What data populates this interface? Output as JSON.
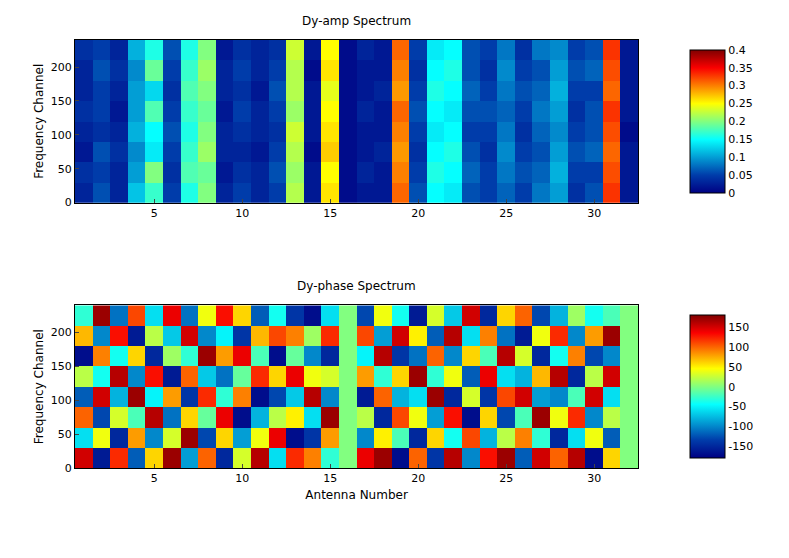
{
  "chart_data": [
    {
      "type": "heatmap",
      "title": "Dy-amp Spectrum",
      "ylabel": "Frequency Channel",
      "x": [
        1,
        2,
        3,
        4,
        5,
        6,
        7,
        8,
        9,
        10,
        11,
        12,
        13,
        14,
        15,
        16,
        17,
        18,
        19,
        20,
        21,
        22,
        23,
        24,
        25,
        26,
        27,
        28,
        29,
        30,
        31,
        32
      ],
      "y": [
        15,
        45,
        75,
        105,
        135,
        165,
        195,
        225
      ],
      "xlim": [
        0.5,
        32.5
      ],
      "ylim": [
        0,
        240
      ],
      "xticks": [
        5,
        10,
        15,
        20,
        25,
        30
      ],
      "yticks": [
        0,
        50,
        100,
        150,
        200
      ],
      "z": [
        [
          0.03,
          0.06,
          0.03,
          0.12,
          0.17,
          0.05,
          0.16,
          0.2,
          0.03,
          0.05,
          0.03,
          0.05,
          0.22,
          0.02,
          0.26,
          0.01,
          0.02,
          0.02,
          0.31,
          0.06,
          0.15,
          0.14,
          0.06,
          0.05,
          0.07,
          0.05,
          0.08,
          0.1,
          0.04,
          0.06,
          0.33,
          0.02
        ],
        [
          0.04,
          0.05,
          0.03,
          0.1,
          0.2,
          0.04,
          0.18,
          0.19,
          0.02,
          0.04,
          0.03,
          0.06,
          0.21,
          0.02,
          0.25,
          0.01,
          0.03,
          0.02,
          0.3,
          0.05,
          0.16,
          0.15,
          0.07,
          0.05,
          0.08,
          0.06,
          0.07,
          0.11,
          0.05,
          0.05,
          0.32,
          0.02
        ],
        [
          0.02,
          0.06,
          0.04,
          0.09,
          0.14,
          0.05,
          0.17,
          0.21,
          0.03,
          0.03,
          0.02,
          0.05,
          0.22,
          0.01,
          0.27,
          0.01,
          0.02,
          0.03,
          0.29,
          0.04,
          0.15,
          0.16,
          0.06,
          0.04,
          0.09,
          0.05,
          0.06,
          0.1,
          0.06,
          0.07,
          0.31,
          0.02
        ],
        [
          0.03,
          0.04,
          0.03,
          0.11,
          0.15,
          0.06,
          0.16,
          0.2,
          0.03,
          0.04,
          0.03,
          0.04,
          0.23,
          0.02,
          0.26,
          0.01,
          0.02,
          0.02,
          0.3,
          0.05,
          0.14,
          0.15,
          0.05,
          0.05,
          0.08,
          0.04,
          0.07,
          0.09,
          0.05,
          0.06,
          0.32,
          0.01
        ],
        [
          0.04,
          0.05,
          0.02,
          0.1,
          0.18,
          0.05,
          0.17,
          0.19,
          0.02,
          0.05,
          0.03,
          0.05,
          0.21,
          0.02,
          0.25,
          0.01,
          0.03,
          0.02,
          0.31,
          0.06,
          0.15,
          0.14,
          0.06,
          0.06,
          0.07,
          0.05,
          0.08,
          0.1,
          0.04,
          0.06,
          0.33,
          0.02
        ],
        [
          0.03,
          0.05,
          0.03,
          0.1,
          0.13,
          0.04,
          0.18,
          0.2,
          0.03,
          0.04,
          0.02,
          0.06,
          0.22,
          0.02,
          0.24,
          0.01,
          0.02,
          0.03,
          0.29,
          0.05,
          0.16,
          0.15,
          0.07,
          0.05,
          0.08,
          0.06,
          0.07,
          0.11,
          0.05,
          0.05,
          0.31,
          0.02
        ],
        [
          0.03,
          0.06,
          0.04,
          0.09,
          0.19,
          0.05,
          0.17,
          0.21,
          0.03,
          0.05,
          0.03,
          0.05,
          0.22,
          0.01,
          0.26,
          0.01,
          0.02,
          0.02,
          0.3,
          0.04,
          0.15,
          0.16,
          0.06,
          0.04,
          0.09,
          0.05,
          0.06,
          0.1,
          0.06,
          0.07,
          0.32,
          0.02
        ],
        [
          0.04,
          0.05,
          0.03,
          0.11,
          0.16,
          0.06,
          0.16,
          0.2,
          0.02,
          0.04,
          0.03,
          0.04,
          0.23,
          0.02,
          0.25,
          0.01,
          0.03,
          0.02,
          0.31,
          0.05,
          0.14,
          0.15,
          0.06,
          0.05,
          0.08,
          0.04,
          0.08,
          0.09,
          0.05,
          0.06,
          0.33,
          0.02
        ]
      ],
      "colorbar": {
        "range": [
          0,
          0.4
        ],
        "ticks": [
          0,
          0.05,
          0.1,
          0.15,
          0.2,
          0.25,
          0.3,
          0.35,
          0.4
        ]
      }
    },
    {
      "type": "heatmap",
      "title": "Dy-phase Spectrum",
      "xlabel": "Antenna Number",
      "ylabel": "Frequency Channel",
      "x": [
        1,
        2,
        3,
        4,
        5,
        6,
        7,
        8,
        9,
        10,
        11,
        12,
        13,
        14,
        15,
        16,
        17,
        18,
        19,
        20,
        21,
        22,
        23,
        24,
        25,
        26,
        27,
        28,
        29,
        30,
        31,
        32
      ],
      "y": [
        15,
        45,
        75,
        105,
        135,
        165,
        195,
        225
      ],
      "xlim": [
        0.5,
        32.5
      ],
      "ylim": [
        0,
        240
      ],
      "xticks": [
        5,
        10,
        15,
        20,
        25,
        30
      ],
      "yticks": [
        0,
        50,
        100,
        150,
        200
      ],
      "z": [
        [
          150,
          -160,
          120,
          -120,
          60,
          170,
          -90,
          100,
          -150,
          30,
          160,
          -60,
          120,
          90,
          -30,
          0,
          140,
          170,
          -170,
          100,
          -140,
          160,
          -100,
          130,
          170,
          -120,
          150,
          100,
          160,
          -170,
          60,
          0
        ],
        [
          -60,
          40,
          -150,
          80,
          -100,
          30,
          170,
          -130,
          60,
          -90,
          40,
          140,
          -170,
          -140,
          80,
          0,
          -100,
          50,
          -20,
          -150,
          60,
          -40,
          110,
          -80,
          20,
          90,
          -30,
          -150,
          -60,
          40,
          -120,
          0
        ],
        [
          100,
          -130,
          30,
          -20,
          160,
          -110,
          60,
          -10,
          140,
          -170,
          -80,
          20,
          50,
          -60,
          170,
          0,
          20,
          -150,
          110,
          40,
          -90,
          130,
          -170,
          60,
          -130,
          -20,
          170,
          40,
          120,
          -100,
          20,
          0
        ],
        [
          -120,
          150,
          -80,
          170,
          -50,
          80,
          -140,
          120,
          -30,
          90,
          -170,
          -130,
          -70,
          160,
          -100,
          0,
          -160,
          100,
          -80,
          -60,
          170,
          -150,
          30,
          -140,
          110,
          150,
          -90,
          -100,
          -20,
          150,
          -60,
          0
        ],
        [
          20,
          -40,
          160,
          -100,
          130,
          -160,
          100,
          -70,
          -110,
          -10,
          120,
          60,
          140,
          40,
          30,
          0,
          80,
          -30,
          60,
          170,
          -30,
          40,
          -120,
          140,
          -60,
          -80,
          70,
          160,
          -150,
          20,
          150,
          0
        ],
        [
          -170,
          90,
          -40,
          60,
          -150,
          10,
          -30,
          170,
          80,
          140,
          -20,
          -170,
          -10,
          -100,
          -150,
          0,
          -50,
          160,
          -140,
          -110,
          100,
          -100,
          60,
          -20,
          160,
          30,
          -150,
          -40,
          90,
          -130,
          -100,
          0
        ],
        [
          70,
          -100,
          130,
          -160,
          20,
          -70,
          150,
          -100,
          -50,
          -140,
          70,
          110,
          90,
          10,
          120,
          0,
          110,
          -90,
          150,
          50,
          -120,
          160,
          -60,
          90,
          -110,
          -160,
          40,
          120,
          -100,
          80,
          170,
          0
        ],
        [
          -30,
          170,
          -110,
          110,
          -60,
          140,
          -110,
          40,
          130,
          60,
          -120,
          -40,
          -140,
          -170,
          -60,
          0,
          -130,
          40,
          -40,
          -160,
          30,
          -70,
          150,
          -150,
          60,
          100,
          -130,
          -80,
          10,
          -40,
          -20,
          0
        ]
      ],
      "colorbar": {
        "range": [
          -180,
          180
        ],
        "ticks": [
          -150,
          -100,
          -50,
          0,
          50,
          100,
          150
        ]
      }
    }
  ]
}
